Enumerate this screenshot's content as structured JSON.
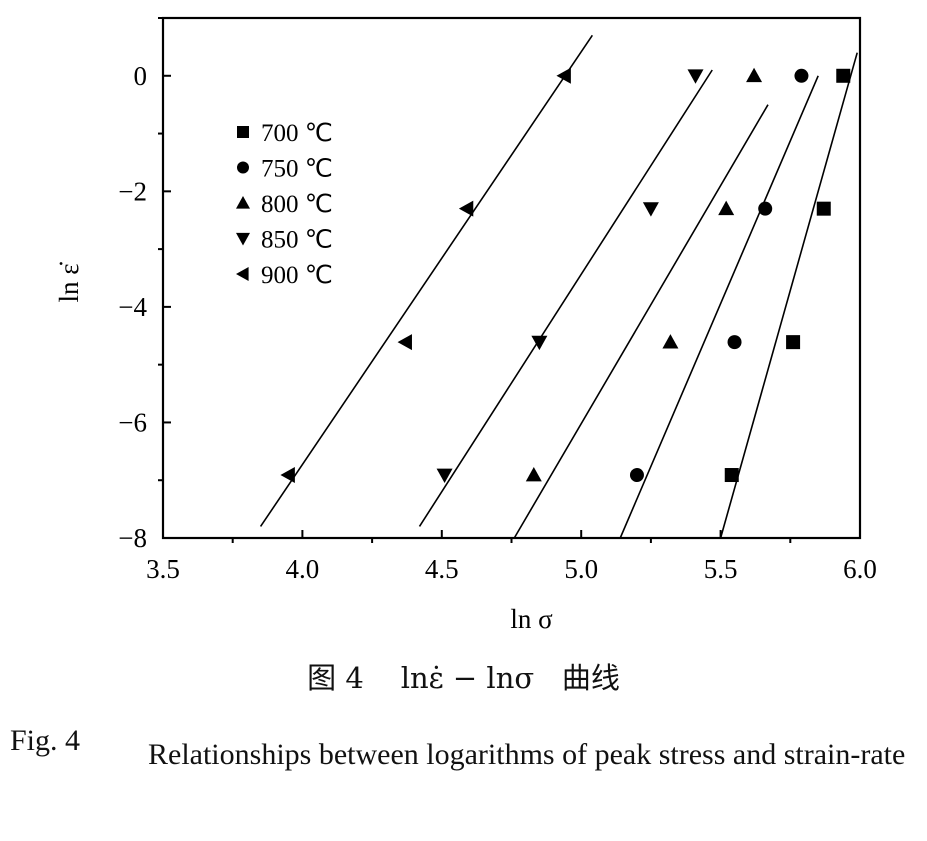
{
  "chart_data": {
    "type": "scatter",
    "xlabel": "ln σ",
    "ylabel": "ln ε̇",
    "xlim": [
      3.5,
      6.0
    ],
    "ylim": [
      -8,
      1
    ],
    "xticks": [
      "3.5",
      "4.0",
      "4.5",
      "5.0",
      "5.5",
      "6.0"
    ],
    "yticks": [
      "0",
      "−2",
      "−4",
      "−6",
      "−8"
    ],
    "legend_position": "top-left",
    "x_markers_are_data": true,
    "series": [
      {
        "name": "700 ℃",
        "marker": "square",
        "x": [
          5.54,
          5.76,
          5.87,
          5.94
        ],
        "y": [
          -6.91,
          -4.61,
          -2.3,
          0.0
        ],
        "fit": [
          [
            5.5,
            -8.0
          ],
          [
            5.99,
            0.4
          ]
        ]
      },
      {
        "name": "750 ℃",
        "marker": "circle",
        "x": [
          5.2,
          5.55,
          5.66,
          5.79
        ],
        "y": [
          -6.91,
          -4.61,
          -2.3,
          0.0
        ],
        "fit": [
          [
            5.14,
            -8.0
          ],
          [
            5.85,
            0.0
          ]
        ]
      },
      {
        "name": "800 ℃",
        "marker": "triangle-up",
        "x": [
          4.83,
          5.32,
          5.52,
          5.62
        ],
        "y": [
          -6.91,
          -4.61,
          -2.3,
          0.0
        ],
        "fit": [
          [
            4.76,
            -8.0
          ],
          [
            5.67,
            -0.5
          ]
        ]
      },
      {
        "name": "850 ℃",
        "marker": "triangle-down",
        "x": [
          4.51,
          4.85,
          5.25,
          5.41
        ],
        "y": [
          -6.91,
          -4.61,
          -2.3,
          0.0
        ],
        "fit": [
          [
            4.42,
            -7.8
          ],
          [
            5.47,
            0.1
          ]
        ]
      },
      {
        "name": "900 ℃",
        "marker": "triangle-left",
        "x": [
          3.95,
          4.37,
          4.59,
          4.94
        ],
        "y": [
          -6.91,
          -4.61,
          -2.3,
          0.0
        ],
        "fit": [
          [
            3.85,
            -7.8
          ],
          [
            5.04,
            0.7
          ]
        ]
      }
    ]
  },
  "caption": {
    "cn_prefix": "图 4",
    "cn_formula": "lnε̇ − lnσ",
    "cn_suffix": "曲线",
    "en_label": "Fig. 4",
    "en_text": "Relationships between logarithms of peak stress and strain-rate"
  }
}
